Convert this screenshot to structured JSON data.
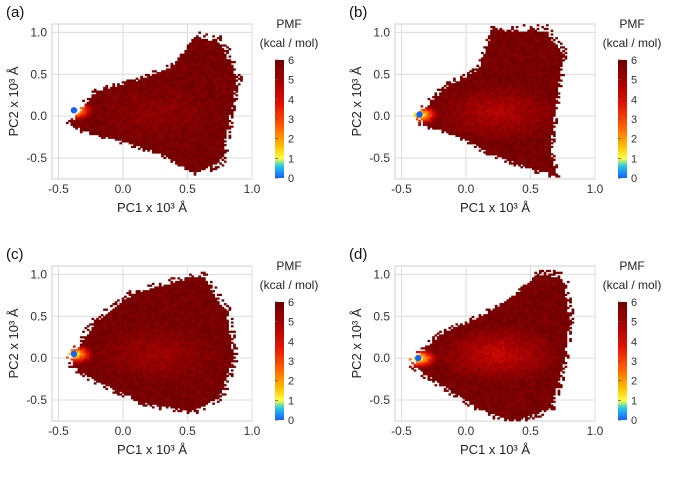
{
  "colors": {
    "background": "#ffffff",
    "grid": "#dcdcdc",
    "scale": [
      "#1560ff",
      "#27c7e8",
      "#ffff40",
      "#ffc000",
      "#ff6000",
      "#e01000",
      "#a00000",
      "#6e0000"
    ]
  },
  "chart_data": [
    {
      "type": "heatmap",
      "panel": "(a)",
      "xlabel": "PC1 x 10³ Å",
      "ylabel": "PC2 x 10³ Å",
      "xlim": [
        -0.55,
        1.0
      ],
      "ylim": [
        -0.75,
        1.1
      ],
      "xticks": [
        "-0.5",
        "0.0",
        "0.5",
        "1.0"
      ],
      "yticks": [
        "-0.5",
        "0.0",
        "0.5",
        "1.0"
      ],
      "legend": {
        "title_line1": "PMF",
        "title_line2": "(kcal / mol)",
        "ticks": [
          "0",
          "1",
          "2",
          "3",
          "4",
          "5",
          "6"
        ],
        "range": [
          0,
          6
        ]
      },
      "minimum": {
        "pc1": -0.38,
        "pc2": 0.07,
        "pmf": 0
      },
      "envelope": [
        [
          -0.36,
          0.0
        ],
        [
          -0.2,
          0.3
        ],
        [
          0.1,
          0.42
        ],
        [
          0.4,
          0.6
        ],
        [
          0.55,
          0.95
        ],
        [
          0.75,
          0.88
        ],
        [
          0.88,
          0.45
        ],
        [
          0.8,
          -0.2
        ],
        [
          0.75,
          -0.55
        ],
        [
          0.55,
          -0.68
        ],
        [
          0.3,
          -0.45
        ],
        [
          0.0,
          -0.3
        ],
        [
          -0.25,
          -0.2
        ],
        [
          -0.4,
          -0.1
        ]
      ]
    },
    {
      "type": "heatmap",
      "panel": "(b)",
      "xlabel": "PC1 x 10³ Å",
      "ylabel": "PC2 x 10³ Å",
      "xlim": [
        -0.55,
        1.0
      ],
      "ylim": [
        -0.75,
        1.1
      ],
      "xticks": [
        "-0.5",
        "0.0",
        "0.5",
        "1.0"
      ],
      "yticks": [
        "-0.5",
        "0.0",
        "0.5",
        "1.0"
      ],
      "legend": {
        "title_line1": "PMF",
        "title_line2": "(kcal / mol)",
        "ticks": [
          "0",
          "1",
          "2",
          "3",
          "4",
          "5",
          "6"
        ],
        "range": [
          0,
          6
        ]
      },
      "minimum": {
        "pc1": -0.36,
        "pc2": 0.02,
        "pmf": 0
      },
      "envelope": [
        [
          -0.38,
          0.0
        ],
        [
          -0.15,
          0.35
        ],
        [
          0.1,
          0.55
        ],
        [
          0.2,
          1.0
        ],
        [
          0.6,
          1.02
        ],
        [
          0.75,
          0.75
        ],
        [
          0.7,
          0.2
        ],
        [
          0.65,
          -0.4
        ],
        [
          0.7,
          -0.7
        ],
        [
          0.5,
          -0.62
        ],
        [
          0.2,
          -0.45
        ],
        [
          -0.1,
          -0.2
        ],
        [
          -0.3,
          -0.12
        ]
      ]
    },
    {
      "type": "heatmap",
      "panel": "(c)",
      "xlabel": "PC1 x 10³ Å",
      "ylabel": "PC2 x 10³ Å",
      "xlim": [
        -0.55,
        1.0
      ],
      "ylim": [
        -0.75,
        1.1
      ],
      "xticks": [
        "-0.5",
        "0.0",
        "0.5",
        "1.0"
      ],
      "yticks": [
        "-0.5",
        "0.0",
        "0.5",
        "1.0"
      ],
      "legend": {
        "title_line1": "PMF",
        "title_line2": "(kcal / mol)",
        "ticks": [
          "0",
          "1",
          "2",
          "3",
          "4",
          "5",
          "6"
        ],
        "range": [
          0,
          6
        ]
      },
      "minimum": {
        "pc1": -0.38,
        "pc2": 0.05,
        "pmf": 0
      },
      "envelope": [
        [
          -0.4,
          0.0
        ],
        [
          -0.2,
          0.45
        ],
        [
          0.1,
          0.78
        ],
        [
          0.4,
          0.9
        ],
        [
          0.6,
          0.98
        ],
        [
          0.8,
          0.55
        ],
        [
          0.85,
          0.0
        ],
        [
          0.75,
          -0.45
        ],
        [
          0.55,
          -0.62
        ],
        [
          0.2,
          -0.55
        ],
        [
          -0.1,
          -0.35
        ],
        [
          -0.35,
          -0.15
        ]
      ]
    },
    {
      "type": "heatmap",
      "panel": "(d)",
      "xlabel": "PC1 x 10³ Å",
      "ylabel": "PC2 x 10³ Å",
      "xlim": [
        -0.55,
        1.0
      ],
      "ylim": [
        -0.75,
        1.1
      ],
      "xticks": [
        "-0.5",
        "0.0",
        "0.5",
        "1.0"
      ],
      "yticks": [
        "-0.5",
        "0.0",
        "0.5",
        "1.0"
      ],
      "legend": {
        "title_line1": "PMF",
        "title_line2": "(kcal / mol)",
        "ticks": [
          "0",
          "1",
          "2",
          "3",
          "4",
          "5",
          "6"
        ],
        "range": [
          0,
          6
        ]
      },
      "minimum": {
        "pc1": -0.37,
        "pc2": 0.0,
        "pmf": 0
      },
      "envelope": [
        [
          -0.4,
          0.0
        ],
        [
          -0.15,
          0.32
        ],
        [
          0.1,
          0.48
        ],
        [
          0.35,
          0.7
        ],
        [
          0.55,
          1.0
        ],
        [
          0.75,
          0.95
        ],
        [
          0.8,
          0.45
        ],
        [
          0.75,
          -0.1
        ],
        [
          0.65,
          -0.6
        ],
        [
          0.35,
          -0.75
        ],
        [
          0.1,
          -0.6
        ],
        [
          -0.2,
          -0.3
        ],
        [
          -0.38,
          -0.12
        ]
      ]
    }
  ]
}
